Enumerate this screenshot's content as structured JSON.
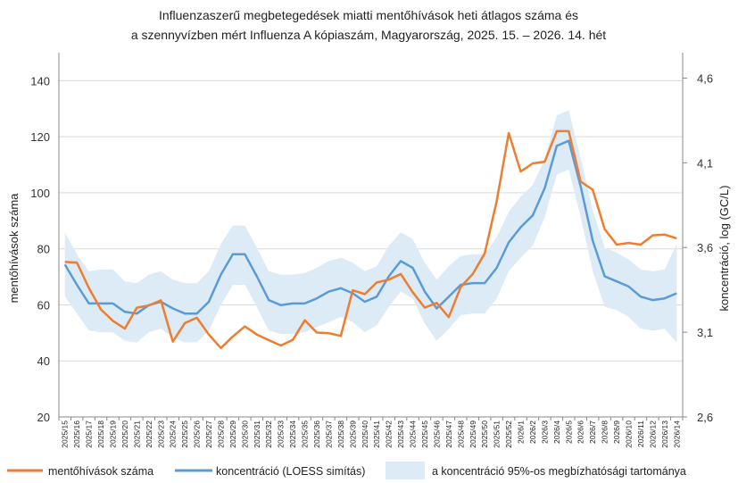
{
  "chart_data": {
    "type": "line",
    "title_line1": "Influenzaszerű megbetegedések miatti mentőhívások heti átlagos száma és",
    "title_line2": "a szennyvízben mért Influenza A kópiaszám, Magyarország, 2025. 15. – 2026. 14. hét",
    "ylabel_left": "mentőhívások száma",
    "ylabel_right": "koncentráció, log (GC/L)",
    "ylim_left": [
      20,
      150
    ],
    "yticks_left": [
      "20",
      "40",
      "60",
      "80",
      "100",
      "120",
      "140"
    ],
    "ylim_right": [
      2.6,
      4.75
    ],
    "yticks_right": [
      "2,6",
      "3,1",
      "3,6",
      "4,1",
      "4,6"
    ],
    "x": [
      "2025/15",
      "2025/16",
      "2025/17",
      "2025/18",
      "2025/19",
      "2025/20",
      "2025/21",
      "2025/22",
      "2025/23",
      "2025/24",
      "2025/25",
      "2025/26",
      "2025/27",
      "2025/28",
      "2025/29",
      "2025/30",
      "2025/31",
      "2025/32",
      "2025/33",
      "2025/34",
      "2025/35",
      "2025/36",
      "2025/37",
      "2025/38",
      "2025/39",
      "2025/40",
      "2025/41",
      "2025/42",
      "2025/43",
      "2025/44",
      "2025/45",
      "2025/46",
      "2025/47",
      "2025/48",
      "2025/49",
      "2025/50",
      "2025/51",
      "2025/52",
      "2026/1",
      "2026/2",
      "2026/3",
      "2026/4",
      "2026/5",
      "2026/6",
      "2026/7",
      "2026/8",
      "2026/9",
      "2026/10",
      "2026/11",
      "2026/12",
      "2026/13",
      "2026/14"
    ],
    "series": [
      {
        "name": "mentőhívások száma",
        "axis": "left",
        "color": "#ED7D31",
        "values": [
          75.3,
          75.1,
          66.0,
          58.4,
          54.3,
          51.5,
          59.0,
          59.8,
          61.6,
          46.9,
          53.5,
          55.4,
          49.4,
          44.6,
          48.7,
          52.3,
          49.4,
          47.4,
          45.5,
          47.5,
          54.5,
          50.1,
          49.9,
          48.9,
          65.2,
          63.8,
          68.0,
          69.0,
          71.0,
          64.5,
          59.0,
          60.7,
          55.6,
          66.4,
          71.0,
          78.4,
          97.0,
          121.3,
          107.6,
          110.5,
          111.1,
          122.0,
          122.0,
          104.0,
          101.1,
          87.0,
          81.5,
          82.1,
          81.5,
          84.8,
          85.1,
          83.7
        ]
      },
      {
        "name": "koncentráció (LOESS simítás)",
        "axis": "right",
        "color": "#5B9BD5",
        "values": [
          3.5,
          3.38,
          3.27,
          3.27,
          3.27,
          3.22,
          3.21,
          3.26,
          3.28,
          3.24,
          3.21,
          3.21,
          3.28,
          3.44,
          3.56,
          3.56,
          3.43,
          3.29,
          3.26,
          3.27,
          3.27,
          3.3,
          3.34,
          3.36,
          3.33,
          3.28,
          3.31,
          3.43,
          3.52,
          3.48,
          3.34,
          3.24,
          3.31,
          3.38,
          3.39,
          3.39,
          3.48,
          3.63,
          3.72,
          3.79,
          3.95,
          4.2,
          4.23,
          3.96,
          3.64,
          3.43,
          3.4,
          3.37,
          3.31,
          3.29,
          3.3,
          3.33
        ]
      },
      {
        "name": "a koncentráció 95%-os megbízhatósági tartománya",
        "axis": "right",
        "color": "#DDEBF7",
        "lower": [
          3.31,
          3.21,
          3.11,
          3.1,
          3.1,
          3.05,
          3.04,
          3.1,
          3.12,
          3.07,
          3.04,
          3.04,
          3.11,
          3.26,
          3.38,
          3.38,
          3.25,
          3.11,
          3.09,
          3.09,
          3.1,
          3.13,
          3.16,
          3.19,
          3.16,
          3.1,
          3.14,
          3.25,
          3.34,
          3.3,
          3.15,
          3.05,
          3.12,
          3.2,
          3.21,
          3.21,
          3.3,
          3.46,
          3.54,
          3.61,
          3.78,
          4.03,
          4.06,
          3.78,
          3.46,
          3.25,
          3.23,
          3.19,
          3.12,
          3.11,
          3.12,
          3.04
        ],
        "upper": [
          3.69,
          3.56,
          3.46,
          3.47,
          3.47,
          3.4,
          3.39,
          3.44,
          3.46,
          3.41,
          3.39,
          3.39,
          3.46,
          3.62,
          3.73,
          3.73,
          3.6,
          3.46,
          3.44,
          3.44,
          3.45,
          3.48,
          3.52,
          3.54,
          3.51,
          3.46,
          3.49,
          3.61,
          3.69,
          3.65,
          3.51,
          3.41,
          3.49,
          3.55,
          3.56,
          3.56,
          3.66,
          3.81,
          3.9,
          3.97,
          4.12,
          4.38,
          4.41,
          4.13,
          3.82,
          3.6,
          3.57,
          3.53,
          3.47,
          3.46,
          3.47,
          3.62
        ]
      }
    ],
    "grid": "horizontal",
    "legend_position": "bottom"
  }
}
